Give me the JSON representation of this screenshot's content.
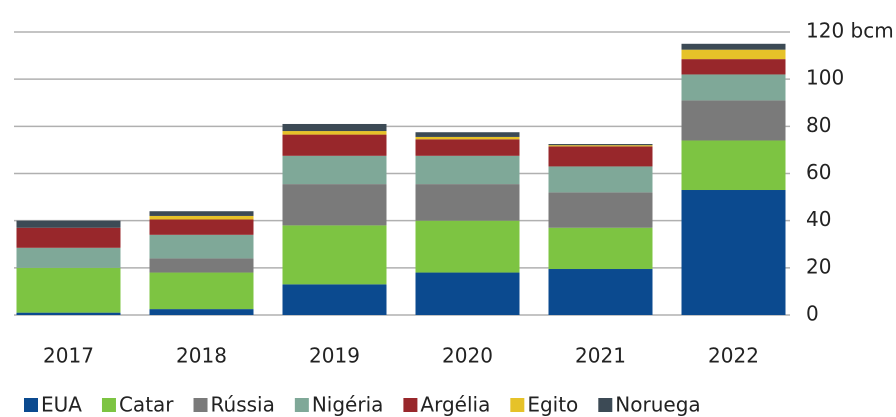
{
  "chart_data": {
    "type": "stacked_bar",
    "categories": [
      "2017",
      "2018",
      "2019",
      "2020",
      "2021",
      "2022"
    ],
    "series": [
      {
        "name": "EUA",
        "color": "#0b4a8f",
        "values": [
          1,
          2.5,
          13,
          18,
          19.5,
          53
        ]
      },
      {
        "name": "Catar",
        "color": "#7dc442",
        "values": [
          19,
          15.5,
          25,
          22,
          17.5,
          21
        ]
      },
      {
        "name": "Rússia",
        "color": "#7a7a7a",
        "values": [
          0,
          6,
          17.5,
          15.5,
          15,
          17
        ]
      },
      {
        "name": "Nigéria",
        "color": "#7fa898",
        "values": [
          8.5,
          10,
          12,
          12,
          11,
          11
        ]
      },
      {
        "name": "Argélia",
        "color": "#98272b",
        "values": [
          8.5,
          6.5,
          9,
          7,
          8.5,
          6.5
        ]
      },
      {
        "name": "Egito",
        "color": "#e6c229",
        "values": [
          0,
          1.5,
          1.5,
          1,
          0.5,
          4
        ]
      },
      {
        "name": "Noruega",
        "color": "#3c4a55",
        "values": [
          3,
          2,
          3,
          2,
          0.5,
          2.5
        ]
      }
    ],
    "ylim": [
      0,
      120
    ],
    "yticks": [
      0,
      20,
      40,
      60,
      80,
      100,
      {
        "value": 120,
        "label": "120 bcm"
      }
    ],
    "grid": true,
    "legend": "bottom"
  }
}
